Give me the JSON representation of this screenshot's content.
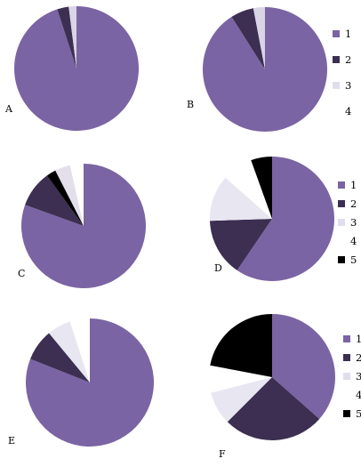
{
  "chart_data": [
    {
      "type": "pie",
      "panel_label": "A",
      "legend": [],
      "slices": [
        {
          "category": "1",
          "value": 95.0,
          "color": "#7b64a3"
        },
        {
          "category": "2",
          "value": 3.0,
          "color": "#3c2f52"
        },
        {
          "category": "3",
          "value": 2.0,
          "color": "#d9d4e6"
        },
        {
          "category": "4",
          "value": 0.0,
          "color": "#ffffff"
        }
      ]
    },
    {
      "type": "pie",
      "panel_label": "B",
      "legend": [
        "1",
        "2",
        "3",
        "4"
      ],
      "slices": [
        {
          "category": "1",
          "value": 91.0,
          "color": "#7b64a3"
        },
        {
          "category": "2",
          "value": 6.0,
          "color": "#3c2f52"
        },
        {
          "category": "3",
          "value": 3.0,
          "color": "#d9d4e6"
        },
        {
          "category": "4",
          "value": 0.0,
          "color": "#ffffff"
        }
      ]
    },
    {
      "type": "pie",
      "panel_label": "C",
      "legend": [],
      "slices": [
        {
          "category": "1",
          "value": 80.5,
          "color": "#7b64a3"
        },
        {
          "category": "2",
          "value": 9.5,
          "color": "#3c2f52"
        },
        {
          "category": "5",
          "value": 2.5,
          "color": "#000000"
        },
        {
          "category": "3",
          "value": 4.0,
          "color": "#e3e0ec"
        },
        {
          "category": "4",
          "value": 3.5,
          "color": "#ffffff"
        }
      ]
    },
    {
      "type": "pie",
      "panel_label": "D",
      "legend": [
        "1",
        "2",
        "3",
        "4",
        "5"
      ],
      "slices": [
        {
          "category": "1",
          "value": 59.5,
          "color": "#7b64a3"
        },
        {
          "category": "2",
          "value": 15.0,
          "color": "#3c2f52"
        },
        {
          "category": "3",
          "value": 12.0,
          "color": "#e8e6f0"
        },
        {
          "category": "4",
          "value": 8.0,
          "color": "#ffffff"
        },
        {
          "category": "5",
          "value": 5.5,
          "color": "#000000"
        }
      ]
    },
    {
      "type": "pie",
      "panel_label": "E",
      "legend": [],
      "slices": [
        {
          "category": "1",
          "value": 81.0,
          "color": "#7b64a3"
        },
        {
          "category": "2",
          "value": 8.0,
          "color": "#3c2f52"
        },
        {
          "category": "3",
          "value": 6.0,
          "color": "#e8e6f0"
        },
        {
          "category": "4",
          "value": 5.0,
          "color": "#ffffff"
        }
      ]
    },
    {
      "type": "pie",
      "panel_label": "F",
      "legend": [
        "1",
        "2",
        "3",
        "4",
        "5"
      ],
      "slices": [
        {
          "category": "1",
          "value": 36.5,
          "color": "#7b64a3"
        },
        {
          "category": "2",
          "value": 26.0,
          "color": "#3c2f52"
        },
        {
          "category": "3",
          "value": 8.5,
          "color": "#e8e6f0"
        },
        {
          "category": "4",
          "value": 7.0,
          "color": "#ffffff"
        },
        {
          "category": "5",
          "value": 22.0,
          "color": "#000000"
        }
      ]
    }
  ],
  "legend_colors": {
    "1": "#7b64a3",
    "2": "#3c2f52",
    "3": "#e1dded",
    "4": "#ffffff",
    "5": "#000000"
  }
}
